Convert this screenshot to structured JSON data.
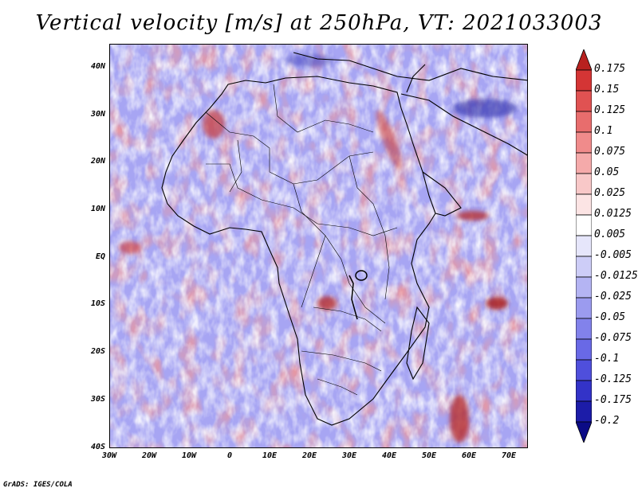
{
  "title": "Vertical velocity [m/s] at 250hPa, VT: 2021033003",
  "credit": "GrADS: IGES/COLA",
  "map": {
    "lat_labels": [
      "40N",
      "30N",
      "20N",
      "10N",
      "EQ",
      "10S",
      "20S",
      "30S",
      "40S"
    ],
    "lon_labels": [
      "30W",
      "20W",
      "10W",
      "0",
      "10E",
      "20E",
      "30E",
      "40E",
      "50E",
      "60E",
      "70E"
    ],
    "colors": {
      "background_blue": "#a7a5f3",
      "light_blue": "#cfcdf8",
      "mid_blue": "#8e8bee",
      "light_red": "#f2b0b0",
      "mid_red": "#e07070",
      "dark_red": "#b22626",
      "border": "#000000"
    }
  },
  "colorbar": {
    "labels": [
      "0.175",
      "0.15",
      "0.125",
      "0.1",
      "0.075",
      "0.05",
      "0.025",
      "0.0125",
      "0.005",
      "-0.005",
      "-0.0125",
      "-0.025",
      "-0.05",
      "-0.075",
      "-0.1",
      "-0.125",
      "-0.175",
      "-0.2"
    ],
    "colors": [
      "#b8211f",
      "#d43535",
      "#e05252",
      "#e86d6d",
      "#f08b8b",
      "#f5aaaa",
      "#f8c8c8",
      "#fce4e4",
      "#ffffff",
      "#e6e6fb",
      "#cdcdf7",
      "#b4b4f3",
      "#9b9bef",
      "#8282eb",
      "#6969e6",
      "#4f4fdc",
      "#3333c8",
      "#1c1ca8",
      "#0b0b86"
    ]
  }
}
